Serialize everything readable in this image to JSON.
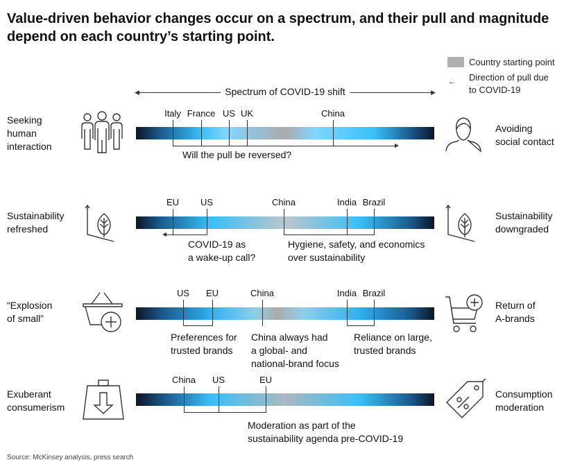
{
  "title": "Value-driven behavior changes occur on a spectrum, and their pull and magnitude depend on each country’s starting point.",
  "legend": {
    "starting_point": "Country starting point",
    "direction_line1": "Direction of pull due",
    "direction_line2": "to COVID-19",
    "swatch_color": "#b0b0b0"
  },
  "spectrum_label": "Spectrum of COVID-19 shift",
  "rows": [
    {
      "left_line1": "Seeking",
      "left_line2": "human",
      "left_line3": "interaction",
      "right_line1": "Avoiding",
      "right_line2": "social contact",
      "countries": [
        "Italy",
        "France",
        "US",
        "UK",
        "China"
      ],
      "note1": "Will the pull be reversed?"
    },
    {
      "left_line1": "Sustainability",
      "left_line2": "refreshed",
      "right_line1": "Sustainability",
      "right_line2": "downgraded",
      "countries": [
        "EU",
        "US",
        "China",
        "India",
        "Brazil"
      ],
      "note1_line1": "COVID-19 as",
      "note1_line2": "a wake-up call?",
      "note2_line1": "Hygiene, safety, and economics",
      "note2_line2": "over sustainability"
    },
    {
      "left_line1": "“Explosion",
      "left_line2": "of small”",
      "right_line1": "Return of",
      "right_line2": "A-brands",
      "countries": [
        "US",
        "EU",
        "China",
        "India",
        "Brazil"
      ],
      "note1_line1": "Preferences for",
      "note1_line2": "trusted brands",
      "note2_line1": "China always had",
      "note2_line2": "a global- and",
      "note2_line3": "national-brand focus",
      "note3_line1": "Reliance on large,",
      "note3_line2": "trusted brands"
    },
    {
      "left_line1": "Exuberant",
      "left_line2": "consumerism",
      "right_line1": "Consumption",
      "right_line2": "moderation",
      "countries": [
        "China",
        "US",
        "EU"
      ],
      "note1_line1": "Moderation as part of the",
      "note1_line2": "sustainability agenda pre-COVID-19"
    }
  ],
  "icons": [
    "people-group-icon",
    "person-icon",
    "growth-leaf-icon",
    "growth-leaf-icon",
    "basket-plus-icon",
    "cart-plus-icon",
    "weight-down-icon",
    "discount-tag-icon"
  ],
  "source": "Source: McKinsey analysis, press search"
}
